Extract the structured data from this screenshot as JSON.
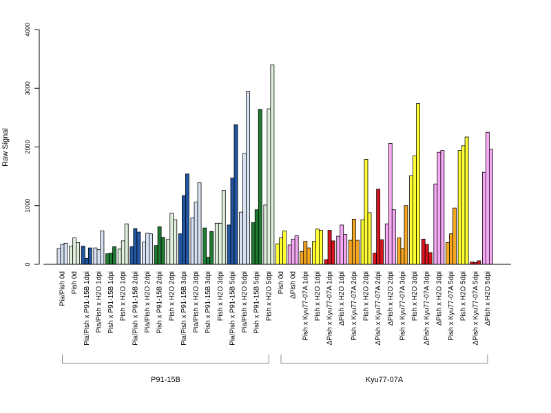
{
  "chart_data": {
    "type": "bar",
    "ylabel": "Raw Signal",
    "ylim": [
      0,
      4000
    ],
    "yticks": [
      "0",
      "1000",
      "2000",
      "3000",
      "4000"
    ],
    "bar_border": "#000000",
    "groups": [
      {
        "label": "Pia/Pish 0d",
        "color": "#d7e3f2",
        "values": [
          270,
          340,
          360
        ]
      },
      {
        "label": "Pish 0d",
        "color": "#dff0dc",
        "values": [
          310,
          450,
          370
        ]
      },
      {
        "label": "Pia/Pish x P91-15B 1dpi",
        "color": "#2256a3",
        "values": [
          310,
          100,
          280
        ]
      },
      {
        "label": "Pia/Pish x H2O 1dpi",
        "color": "#d7e3f2",
        "values": [
          280,
          250,
          570
        ]
      },
      {
        "label": "Pish x P91-15B 1dpi",
        "color": "#1f7a32",
        "values": [
          180,
          190,
          300
        ]
      },
      {
        "label": "Pish x H2O 1dpi",
        "color": "#dff0dc",
        "values": [
          260,
          400,
          690
        ]
      },
      {
        "label": "Pia/Pish x P91-15B 2dpi",
        "color": "#2256a3",
        "values": [
          300,
          610,
          550
        ]
      },
      {
        "label": "Pia/Pish x H2O 2dpi",
        "color": "#d7e3f2",
        "values": [
          380,
          530,
          520
        ]
      },
      {
        "label": "Pish x P91-15B 2dpi",
        "color": "#1f7a32",
        "values": [
          320,
          640,
          460
        ]
      },
      {
        "label": "Pish x H2O 2dpi",
        "color": "#dff0dc",
        "values": [
          430,
          870,
          760
        ]
      },
      {
        "label": "Pia/Pish x P91-15B 3dpi",
        "color": "#2256a3",
        "values": [
          520,
          1170,
          1540
        ]
      },
      {
        "label": "Pia/Pish x H2O 3dpi",
        "color": "#d7e3f2",
        "values": [
          790,
          1060,
          1390
        ]
      },
      {
        "label": "Pish x P91-15B 3dpi",
        "color": "#1f7a32",
        "values": [
          620,
          120,
          560
        ]
      },
      {
        "label": "Pish x H2O 3dpi",
        "color": "#dff0dc",
        "values": [
          700,
          700,
          1260
        ]
      },
      {
        "label": "Pia/Pish x P91-15B 5dpi",
        "color": "#2256a3",
        "values": [
          670,
          1470,
          2380
        ]
      },
      {
        "label": "Pia/Pish x H2O 5dpi",
        "color": "#d7e3f2",
        "values": [
          890,
          1890,
          2950
        ]
      },
      {
        "label": "Pish x P91-15B 5dpi",
        "color": "#1f7a32",
        "values": [
          710,
          930,
          2640
        ]
      },
      {
        "label": "Pish x H2O 5dpi",
        "color": "#dff0dc",
        "values": [
          1010,
          2650,
          3400
        ]
      },
      {
        "label": "Pish 0d",
        "color": "#ffff33",
        "values": [
          350,
          450,
          570
        ]
      },
      {
        "label": "ΔPish 0d",
        "color": "#f7a8f4",
        "values": [
          330,
          430,
          490
        ]
      },
      {
        "label": "Pish x Kyu77-07A 1dpi",
        "color": "#f5a623",
        "values": [
          220,
          390,
          280
        ]
      },
      {
        "label": "Pish x H2O 1dpi",
        "color": "#ffff33",
        "values": [
          390,
          600,
          580
        ]
      },
      {
        "label": "ΔPish x Kyu77-07A 1dpi",
        "color": "#d7151f",
        "values": [
          80,
          580,
          400
        ]
      },
      {
        "label": "ΔPish x H2O 1dpi",
        "color": "#f7a8f4",
        "values": [
          480,
          670,
          510
        ]
      },
      {
        "label": "Pish x Kyu77-07A 2dpi",
        "color": "#f5a623",
        "values": [
          410,
          770,
          410
        ]
      },
      {
        "label": "Pish x H2O 2dpi",
        "color": "#ffff33",
        "values": [
          760,
          1790,
          880
        ]
      },
      {
        "label": "ΔPish x Kyu77-07A 2dpi",
        "color": "#d7151f",
        "values": [
          190,
          1280,
          420
        ]
      },
      {
        "label": "ΔPish x H2O 2dpi",
        "color": "#f7a8f4",
        "values": [
          690,
          2060,
          930
        ]
      },
      {
        "label": "Pish x Kyu77-07A 3dpi",
        "color": "#f5a623",
        "values": [
          450,
          270,
          1000
        ]
      },
      {
        "label": "Pish x H2O 3dpi",
        "color": "#ffff33",
        "values": [
          1510,
          1850,
          2740
        ]
      },
      {
        "label": "ΔPish x Kyu77-07A 3dpi",
        "color": "#d7151f",
        "values": [
          430,
          340,
          200
        ]
      },
      {
        "label": "ΔPish x H2O 3dpi",
        "color": "#f7a8f4",
        "values": [
          1370,
          1910,
          1940
        ]
      },
      {
        "label": "Pish x Kyu77-07A 5dpi",
        "color": "#f5a623",
        "values": [
          370,
          520,
          960
        ]
      },
      {
        "label": "Pish x H2O 5dpi",
        "color": "#ffff33",
        "values": [
          1940,
          2020,
          2170
        ]
      },
      {
        "label": "ΔPish x Kyu77-07A 5dpi",
        "color": "#d7151f",
        "values": [
          40,
          30,
          60
        ]
      },
      {
        "label": "ΔPish x H2O 5dpi",
        "color": "#f7a8f4",
        "values": [
          1570,
          2250,
          1960
        ]
      }
    ],
    "sections": [
      {
        "label": "P91-15B",
        "first": 0,
        "last": 17
      },
      {
        "label": "Kyu77-07A",
        "first": 18,
        "last": 35
      }
    ]
  }
}
